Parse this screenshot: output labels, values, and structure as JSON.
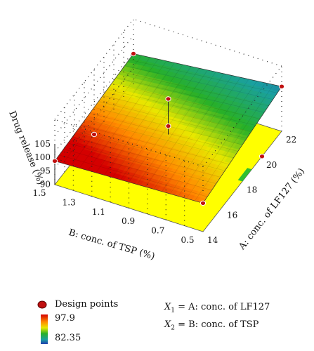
{
  "chart_data": {
    "type": "surface3d",
    "title": "",
    "z_axis": {
      "label": "Drug release (%)",
      "ticks": [
        "105",
        "100",
        "95",
        "90"
      ]
    },
    "y_axis": {
      "label": "A: conc. of LF127 (%)",
      "ticks": [
        "14",
        "16",
        "18",
        "20",
        "22"
      ],
      "range": [
        14,
        22
      ]
    },
    "x_axis": {
      "label": "B: conc. of TSP (%)",
      "ticks": [
        "1.5",
        "1.3",
        "1.1",
        "0.9",
        "0.7",
        "0.5"
      ],
      "range": [
        0.5,
        1.5
      ]
    },
    "color_scale": {
      "min": "82.35",
      "max": "97.9",
      "colormap": "rainbow"
    },
    "design_points": [
      {
        "A": 14,
        "B": 0.5
      },
      {
        "A": 14,
        "B": 1.5
      },
      {
        "A": 22,
        "B": 0.5
      },
      {
        "A": 22,
        "B": 1.5
      },
      {
        "A": 18,
        "B": 1.0
      },
      {
        "A": 18,
        "B": 1.5
      },
      {
        "A": 18,
        "B": 1.0
      },
      {
        "A": 20,
        "B": 0.5
      }
    ],
    "legend": {
      "design_points_label": "Design points",
      "max_label": "97.9",
      "min_label": "82.35"
    },
    "factor_legend": {
      "x1": {
        "var": "X",
        "sub": "1",
        "rest": " = A: conc. of LF127"
      },
      "x2": {
        "var": "X",
        "sub": "2",
        "rest": " = B: conc. of TSP"
      }
    },
    "colors": {
      "floor": "#ffff00",
      "point": "#c01010",
      "high": "#cc0000",
      "low": "#1f3fae"
    }
  }
}
